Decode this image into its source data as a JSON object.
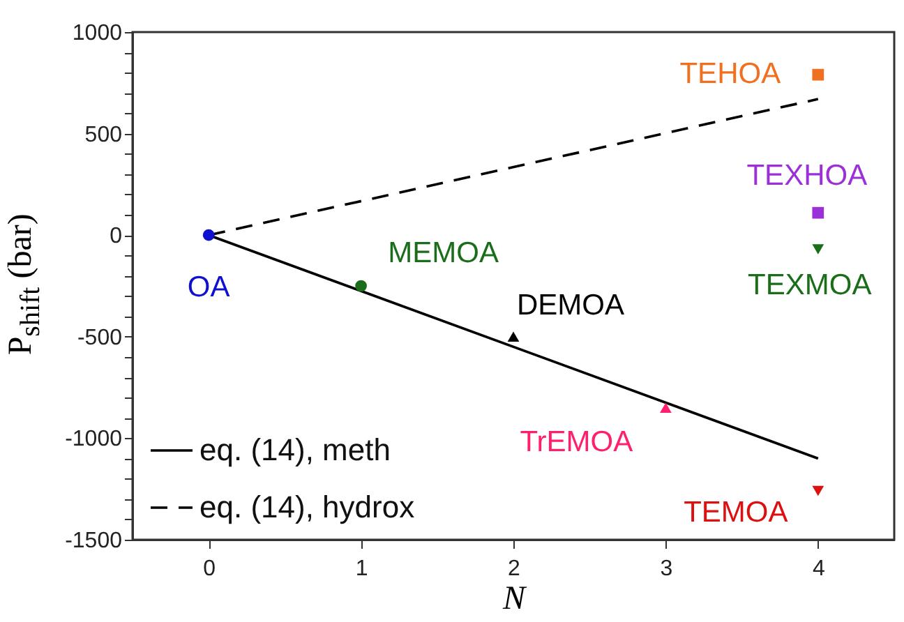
{
  "chart_data": {
    "type": "scatter",
    "xlabel": "N",
    "ylabel": "P$_{shift}$ (bar)",
    "xlim": [
      -0.5,
      4.5
    ],
    "xticks": [
      0,
      1,
      2,
      3,
      4
    ],
    "ylim": [
      -1500,
      1000
    ],
    "yticks": [
      -1500,
      {
        "value": -1400,
        "label": null
      },
      {
        "value": -1300,
        "label": null
      },
      {
        "value": -1200,
        "label": null
      },
      {
        "value": -1100,
        "label": null
      },
      -1000,
      {
        "value": -900,
        "label": null
      },
      {
        "value": -800,
        "label": null
      },
      {
        "value": -700,
        "label": null
      },
      {
        "value": -600,
        "label": null
      },
      -500,
      {
        "value": -400,
        "label": null
      },
      {
        "value": -300,
        "label": null
      },
      {
        "value": -200,
        "label": null
      },
      {
        "value": -100,
        "label": null
      },
      0,
      {
        "value": 100,
        "label": null
      },
      {
        "value": 200,
        "label": null
      },
      {
        "value": 300,
        "label": null
      },
      {
        "value": 400,
        "label": null
      },
      500,
      {
        "value": 600,
        "label": null
      },
      {
        "value": 700,
        "label": null
      },
      {
        "value": 800,
        "label": null
      },
      {
        "value": 900,
        "label": null
      },
      1000
    ],
    "grid": false,
    "legend": "bottom left",
    "series": [
      {
        "name": "eq. (14), meth",
        "type": "line",
        "x": [
          0,
          4
        ],
        "values": [
          0,
          -1100
        ],
        "color": "#000000",
        "line_style": "solid"
      },
      {
        "name": "eq. (14), hydrox",
        "type": "line",
        "x": [
          0,
          4
        ],
        "values": [
          0,
          670
        ],
        "color": "#000000",
        "line_style": "dashed"
      },
      {
        "name": "OA",
        "type": "scatter",
        "x": [
          0
        ],
        "values": [
          0
        ],
        "color": "#1010d0",
        "marker": "circle"
      },
      {
        "name": "MEMOA",
        "type": "scatter",
        "x": [
          1
        ],
        "values": [
          -250
        ],
        "color": "#1a6e1a",
        "marker": "circle"
      },
      {
        "name": "DEMOA",
        "type": "scatter",
        "x": [
          2
        ],
        "values": [
          -500
        ],
        "color": "#000000",
        "marker": "triangle"
      },
      {
        "name": "TrEMOA",
        "type": "scatter",
        "x": [
          3
        ],
        "values": [
          -850
        ],
        "color": "#ff1f6e",
        "marker": "triangle"
      },
      {
        "name": "TEHOA",
        "type": "scatter",
        "x": [
          4
        ],
        "values": [
          790
        ],
        "color": "#f07020",
        "marker": "square"
      },
      {
        "name": "TEXHOA",
        "type": "scatter",
        "x": [
          4
        ],
        "values": [
          110
        ],
        "color": "#9b30d8",
        "marker": "square"
      },
      {
        "name": "TEXMOA",
        "type": "scatter",
        "x": [
          4
        ],
        "values": [
          -70
        ],
        "color": "#1a6e1a",
        "marker": "triangle-down"
      },
      {
        "name": "TEMOA",
        "type": "scatter",
        "x": [
          4
        ],
        "values": [
          -1260
        ],
        "color": "#dd1010",
        "marker": "triangle-down"
      }
    ]
  }
}
